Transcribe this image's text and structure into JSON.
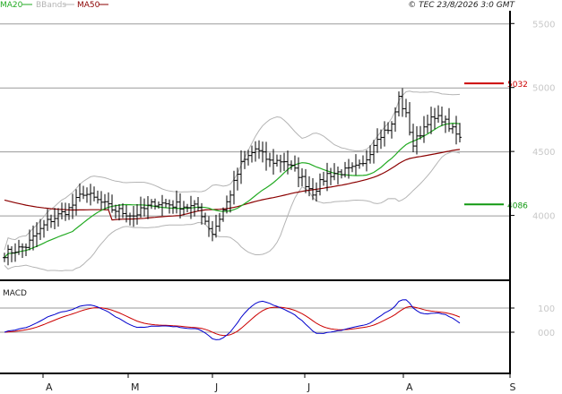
{
  "header": {
    "legend": [
      {
        "label": "MA20",
        "color": "#22aa22"
      },
      {
        "label": "BBands",
        "color": "#b4b4b4"
      },
      {
        "label": "MA50",
        "color": "#8b0000"
      }
    ],
    "copyright": "© TEC 23/8/2026 3:0 GMT"
  },
  "indicator_label": "MACD",
  "chart_data": [
    {
      "type": "ohlc",
      "x_labels": [
        "A",
        "M",
        "J",
        "J",
        "A",
        "S"
      ],
      "y_ticks": [
        "5500",
        "5000",
        "4500",
        "4000"
      ],
      "y_tick_values": [
        5500,
        5000,
        4500,
        4000
      ],
      "ylim": [
        3500,
        5600
      ],
      "series": [
        {
          "name": "MA20",
          "color": "#22aa22"
        },
        {
          "name": "BBands",
          "color": "#b4b4b4"
        },
        {
          "name": "MA50",
          "color": "#8b0000"
        }
      ],
      "markers": [
        {
          "label": "5032",
          "value": 5032,
          "color": "#cc0000"
        },
        {
          "label": "4086",
          "value": 4086,
          "color": "#119911"
        }
      ],
      "grid": true
    },
    {
      "type": "line",
      "title": "MACD",
      "y_ticks": [
        "100",
        "000"
      ],
      "y_tick_values": [
        100,
        0
      ],
      "series": [
        {
          "color": "#0000cc"
        },
        {
          "color": "#cc0000"
        }
      ],
      "grid": true
    }
  ]
}
